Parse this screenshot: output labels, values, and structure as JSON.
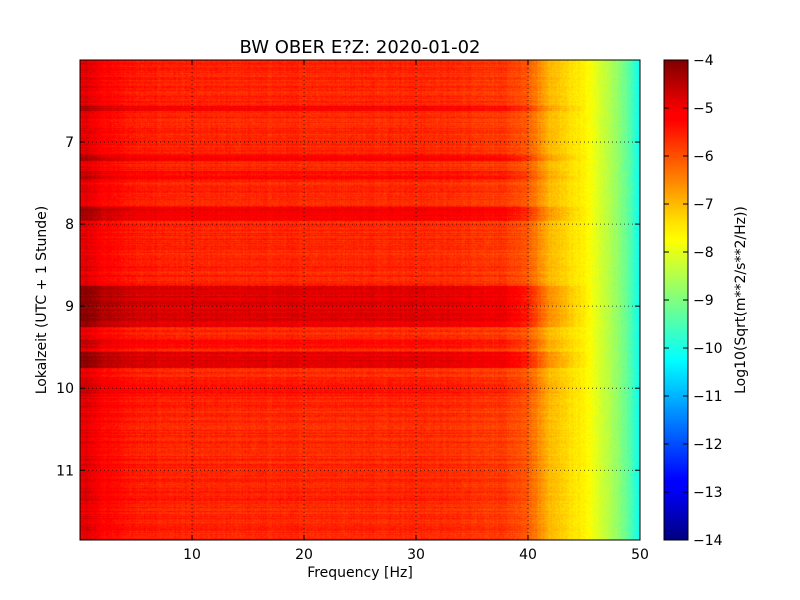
{
  "chart_data": {
    "type": "heatmap",
    "title": "BW OBER E?Z: 2020-01-02",
    "xlabel": "Frequency [Hz]",
    "ylabel": "Lokalzeit (UTC + 1 Stunde)",
    "xlim": [
      0,
      50
    ],
    "ylim": [
      6,
      11.85
    ],
    "x_ticks": [
      10,
      20,
      30,
      40,
      50
    ],
    "x_tick_labels": [
      "10",
      "20",
      "30",
      "40",
      "50"
    ],
    "y_ticks": [
      7,
      8,
      9,
      10,
      11
    ],
    "y_tick_labels": [
      "7",
      "8",
      "9",
      "10",
      "11"
    ],
    "y_inverted": true,
    "grid": true,
    "colormap": "jet",
    "colorbar": {
      "label": "Log10(Sqrt(m**2/s**2/Hz))",
      "range": [
        -14,
        -4
      ],
      "ticks": [
        -4,
        -5,
        -6,
        -7,
        -8,
        -9,
        -10,
        -11,
        -12,
        -13,
        -14
      ],
      "tick_labels": [
        "−4",
        "−5",
        "−6",
        "−7",
        "−8",
        "−9",
        "−10",
        "−11",
        "−12",
        "−13",
        "−14"
      ]
    },
    "spectrum_profile": {
      "frequency_hz": [
        0,
        0.5,
        2,
        5,
        10,
        15,
        20,
        25,
        30,
        35,
        38,
        40,
        41,
        42,
        43,
        44,
        45,
        46,
        47,
        48,
        49,
        50
      ],
      "level": [
        -5.0,
        -4.8,
        -5.2,
        -5.5,
        -5.6,
        -5.6,
        -5.6,
        -5.6,
        -5.6,
        -5.7,
        -5.8,
        -6.1,
        -6.6,
        -7.0,
        -7.2,
        -7.4,
        -7.6,
        -8.0,
        -8.4,
        -8.8,
        -9.4,
        -10.2
      ]
    },
    "time_band_offsets": [
      {
        "from": 6.55,
        "to": 6.62,
        "delta": 0.5
      },
      {
        "from": 7.15,
        "to": 7.22,
        "delta": 0.45
      },
      {
        "from": 7.35,
        "to": 7.45,
        "delta": 0.3
      },
      {
        "from": 7.78,
        "to": 7.95,
        "delta": 0.55
      },
      {
        "from": 8.75,
        "to": 9.25,
        "delta": 0.75
      },
      {
        "from": 9.4,
        "to": 9.5,
        "delta": 0.3
      },
      {
        "from": 9.55,
        "to": 9.75,
        "delta": 0.7
      },
      {
        "from": 9.95,
        "to": 10.1,
        "delta": 0.2
      }
    ]
  }
}
